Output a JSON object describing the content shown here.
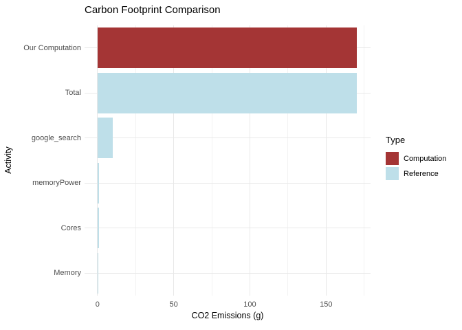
{
  "page": {
    "background": "#ffffff"
  },
  "chart_data": {
    "type": "bar",
    "orientation": "horizontal",
    "title": "Carbon Footprint Comparison",
    "xlabel": "CO2 Emissions (g)",
    "ylabel": "Activity",
    "categories": [
      "Our Computation",
      "Total",
      "google_search",
      "memoryPower",
      "Cores",
      "Memory"
    ],
    "values": [
      170,
      170,
      10,
      0.9,
      0.9,
      0.05
    ],
    "series_type_per_bar": [
      "Computation",
      "Reference",
      "Reference",
      "Reference",
      "Reference",
      "Reference"
    ],
    "x_axis": {
      "major_ticks": [
        0,
        50,
        100,
        150
      ],
      "minor_ticks": [
        25,
        75,
        125,
        175
      ],
      "domain_min": -8.5,
      "domain_max": 179.2
    },
    "legend": {
      "title": "Type",
      "position": "right",
      "entries": [
        {
          "label": "Computation",
          "color": "#A43535"
        },
        {
          "label": "Reference",
          "color": "#BEDFE9"
        }
      ]
    },
    "grid": {
      "on": true,
      "major_color": "#E8E8E8",
      "minor_color": "#F2F2F2"
    },
    "bar_fraction": 0.9,
    "text_colors": {
      "tick_label": "#4D4D4D",
      "title": "#000000"
    }
  }
}
